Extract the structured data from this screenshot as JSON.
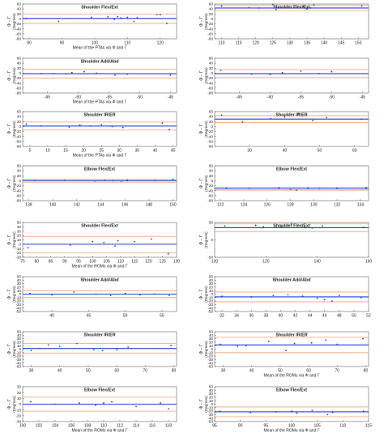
{
  "figure": {
    "axis_symbols": {
      "upper": "Φ − Γ",
      "lower": "(Degrees)"
    }
  },
  "chart_data": [
    {
      "type": "scatter",
      "title": "Shoulder Flex/Ext",
      "xlabel": "Mean of the PTAs via  Φ  and  Γ",
      "ylabel": "Φ − Γ (Degrees)",
      "xlim": [
        78,
        125
      ],
      "ylim": [
        -80,
        60
      ],
      "xticks": [
        80,
        90,
        100,
        110,
        120
      ],
      "yticks": [
        -80,
        -60,
        -40,
        -20,
        0,
        20,
        40,
        60
      ],
      "bias": 2,
      "upper_loa": 20,
      "lower_loa": -18,
      "series": [
        {
          "x": [
            79,
            89,
            99,
            104,
            106,
            107,
            108,
            110,
            112,
            113,
            119,
            120,
            122
          ],
          "y": [
            2,
            -10,
            6,
            8,
            -2,
            9,
            4,
            6,
            -10,
            5,
            18,
            17,
            -18
          ]
        }
      ]
    },
    {
      "type": "scatter",
      "title": "Shoulder Flex/Ext",
      "xlabel": "",
      "ylabel": "Φ − Γ (Degrees)",
      "xlim": [
        108,
        153
      ],
      "ylim": [
        -80,
        60
      ],
      "xticks": [
        110,
        115,
        120,
        125,
        130,
        135,
        140,
        145,
        150
      ],
      "yticks": [
        -80,
        -60,
        -40,
        -20,
        0,
        20,
        40,
        60
      ],
      "bias": 44,
      "upper_loa": 56,
      "lower_loa": 34,
      "series": [
        {
          "x": [
            110,
            118,
            121,
            125,
            126,
            134,
            135,
            136,
            137,
            151
          ],
          "y": [
            52,
            45,
            44,
            58,
            38,
            50,
            40,
            44,
            56,
            52
          ]
        }
      ]
    },
    {
      "type": "scatter",
      "title": "Shoulder Add/Abd",
      "xlabel": "Mean of the PTAs via  Φ  and  Γ",
      "ylabel": "Φ − Γ (Degrees)",
      "xlim": [
        -69,
        -44
      ],
      "ylim": [
        -80,
        60
      ],
      "xticks": [
        -65,
        -60,
        -55,
        -50,
        -45
      ],
      "yticks": [
        -80,
        -60,
        -40,
        -20,
        0,
        20,
        40,
        60
      ],
      "bias": -2,
      "upper_loa": 16,
      "lower_loa": -20,
      "series": [
        {
          "x": [
            -66,
            -64,
            -62,
            -61,
            -59,
            -57,
            -54,
            -52,
            -45
          ],
          "y": [
            -2,
            -2,
            -3,
            2,
            6,
            0,
            -8,
            -4,
            -8
          ]
        }
      ]
    },
    {
      "type": "scatter",
      "title": "",
      "xlabel": "",
      "ylabel": "Φ − Γ (Degrees)",
      "xlim": [
        -69,
        -44
      ],
      "ylim": [
        -80,
        60
      ],
      "xticks": [
        -65,
        -60,
        -55,
        -50,
        -45
      ],
      "yticks": [
        -80,
        -60,
        -40,
        -20,
        0,
        20,
        40,
        60
      ],
      "bias": -2,
      "upper_loa": 14,
      "lower_loa": -18,
      "series": [
        {
          "x": [
            -68,
            -63,
            -60,
            -58,
            -55,
            -52,
            -50
          ],
          "y": [
            12,
            -4,
            -6,
            2,
            8,
            -2,
            6
          ]
        }
      ]
    },
    {
      "type": "scatter",
      "title": "Shoulder IR/ER",
      "xlabel": "Mean of the PTAs via  Φ  and  Γ",
      "ylabel": "Φ − Γ (Degrees)",
      "xlim": [
        3,
        46
      ],
      "ylim": [
        -80,
        60
      ],
      "xticks": [
        5,
        10,
        15,
        20,
        25,
        30,
        35,
        40,
        45
      ],
      "yticks": [
        -80,
        -60,
        -40,
        -20,
        0,
        20,
        40,
        60
      ],
      "bias": 2,
      "upper_loa": 18,
      "lower_loa": -14,
      "series": [
        {
          "x": [
            4,
            8,
            16,
            19,
            22,
            25,
            28,
            31,
            42,
            44
          ],
          "y": [
            10,
            2,
            -2,
            6,
            2,
            8,
            0,
            -4,
            14,
            -12
          ]
        }
      ]
    },
    {
      "type": "scatter",
      "title": "Shoulder IR/ER",
      "xlabel": "",
      "ylabel": "Φ − Γ (Degrees)",
      "xlim": [
        20,
        64
      ],
      "ylim": [
        -80,
        60
      ],
      "xticks": [
        30,
        40,
        50,
        60
      ],
      "yticks": [
        -80,
        -60,
        -40,
        -20,
        0,
        20,
        40,
        60
      ],
      "bias": 30,
      "upper_loa": 44,
      "lower_loa": 16,
      "series": [
        {
          "x": [
            22,
            28,
            36,
            40,
            44,
            48,
            52,
            62
          ],
          "y": [
            46,
            18,
            32,
            38,
            52,
            24,
            36,
            30
          ]
        }
      ]
    },
    {
      "type": "scatter",
      "title": "Elbow Flex/Ext",
      "xlabel": "",
      "ylabel": "Φ − Γ (Degrees)",
      "xlim": [
        137.5,
        150.3
      ],
      "ylim": [
        -80,
        60
      ],
      "xticks": [
        138,
        140,
        142,
        144,
        146,
        148,
        150
      ],
      "yticks": [
        -80,
        -60,
        -40,
        -20,
        0,
        20,
        40,
        60
      ],
      "bias": 0,
      "upper_loa": 6,
      "lower_loa": -6,
      "series": [
        {
          "x": [
            138.5,
            141,
            143.5,
            144.3,
            145,
            145.7,
            146.2,
            148.5,
            150
          ],
          "y": [
            0,
            1,
            -1,
            1,
            0,
            -2,
            2,
            0,
            6
          ]
        }
      ]
    },
    {
      "type": "scatter",
      "title": "Elbow Flex/Ext",
      "xlabel": "",
      "ylabel": "Φ − Γ (Degrees)",
      "xlim": [
        121.5,
        134.7
      ],
      "ylim": [
        -80,
        60
      ],
      "xticks": [
        122,
        124,
        126,
        128,
        130,
        132,
        134
      ],
      "yticks": [
        -80,
        -60,
        -40,
        -20,
        0,
        20,
        40,
        60
      ],
      "bias": -32,
      "upper_loa": -26,
      "lower_loa": -38,
      "series": [
        {
          "x": [
            122.5,
            124.5,
            127,
            128,
            128.5,
            129.5,
            130.5,
            132,
            134.5
          ],
          "y": [
            -30,
            -32,
            -28,
            -34,
            -38,
            -30,
            -32,
            -30,
            -28
          ]
        }
      ]
    },
    {
      "type": "scatter",
      "title": "Shoulder Flex/Ext",
      "xlabel": "Mean of the ROMs via  Φ  and  Γ",
      "ylabel": "Φ − Γ (Degrees)",
      "xlim": [
        75,
        130
      ],
      "ylim": [
        -30,
        50
      ],
      "xticks": [
        75,
        80,
        85,
        90,
        95,
        100,
        105,
        110,
        115,
        120,
        125,
        130
      ],
      "yticks": [
        -30,
        -20,
        -10,
        0,
        10,
        20,
        30,
        40,
        50
      ],
      "bias": 0,
      "upper_loa": 18,
      "lower_loa": -20,
      "series": [
        {
          "x": [
            77,
            92,
            100,
            104,
            108,
            109,
            115,
            121,
            127
          ],
          "y": [
            -8,
            -2,
            6,
            4,
            -4,
            8,
            6,
            12,
            -22
          ]
        }
      ]
    },
    {
      "type": "scatter",
      "title": "Shoulder Flex/Ext",
      "xlabel": "",
      "ylabel": "Φ − Γ (Degrees)",
      "xlim": [
        100,
        160
      ],
      "ylim": [
        -50,
        50
      ],
      "xticks": [
        100,
        120,
        140,
        160
      ],
      "yticks": [
        -50,
        0,
        50
      ],
      "bias": 35,
      "upper_loa": 46,
      "lower_loa": 24,
      "series": [
        {
          "x": [
            104,
            116,
            119,
            126,
            130,
            135,
            138,
            142,
            158
          ],
          "y": [
            40,
            42,
            38,
            38,
            46,
            36,
            34,
            40,
            36
          ]
        }
      ]
    },
    {
      "type": "scatter",
      "title": "Shoulder Add/Abd",
      "xlabel": "",
      "ylabel": "Φ − Γ (Degrees)",
      "xlim": [
        36,
        57
      ],
      "ylim": [
        -50,
        50
      ],
      "xticks": [
        40,
        45,
        50,
        55
      ],
      "yticks": [
        -50,
        -40,
        -30,
        -20,
        -10,
        0,
        10,
        20,
        30,
        40,
        50
      ],
      "bias": 0,
      "upper_loa": 10,
      "lower_loa": -10,
      "series": [
        {
          "x": [
            37,
            40,
            43,
            46,
            48,
            50,
            52,
            54,
            56
          ],
          "y": [
            2,
            -2,
            6,
            0,
            -4,
            2,
            -2,
            0,
            -4
          ]
        }
      ]
    },
    {
      "type": "scatter",
      "title": "Shoulder Add/Abd",
      "xlabel": "",
      "ylabel": "Φ − Γ (Degrees)",
      "xlim": [
        31,
        52
      ],
      "ylim": [
        -50,
        50
      ],
      "xticks": [
        32,
        34,
        36,
        38,
        40,
        42,
        44,
        46,
        48,
        50,
        52
      ],
      "yticks": [
        -50,
        -40,
        -30,
        -20,
        -10,
        0,
        10,
        20,
        30,
        40,
        50
      ],
      "bias": -8,
      "upper_loa": 6,
      "lower_loa": -22,
      "series": [
        {
          "x": [
            32,
            36,
            39,
            41,
            43,
            45,
            46,
            47,
            48,
            51
          ],
          "y": [
            -6,
            -8,
            -4,
            -2,
            -6,
            -12,
            -16,
            -20,
            -4,
            -10
          ]
        }
      ]
    },
    {
      "type": "scatter",
      "title": "Shoulder IR/ER",
      "xlabel": "",
      "ylabel": "Φ − Γ (Degrees)",
      "xlim": [
        27,
        81
      ],
      "ylim": [
        -50,
        50
      ],
      "xticks": [
        30,
        40,
        50,
        60,
        70,
        80
      ],
      "yticks": [
        -50,
        -40,
        -30,
        -20,
        -10,
        0,
        10,
        20,
        30,
        40,
        50
      ],
      "bias": 2,
      "upper_loa": 16,
      "lower_loa": -12,
      "series": [
        {
          "x": [
            30,
            33,
            36,
            40,
            46,
            52,
            55,
            60,
            64,
            79
          ],
          "y": [
            -4,
            2,
            12,
            8,
            16,
            -2,
            -4,
            -2,
            6,
            10
          ]
        }
      ]
    },
    {
      "type": "scatter",
      "title": "Shoulder IR/ER",
      "xlabel": "Mean of the ROMs via  Φ  and  Γ",
      "ylabel": "Φ − Γ (Degrees)",
      "xlim": [
        27,
        81
      ],
      "ylim": [
        -50,
        50
      ],
      "xticks": [
        30,
        40,
        50,
        60,
        70,
        80
      ],
      "yticks": [
        -50,
        -40,
        -30,
        -20,
        -10,
        0,
        10,
        20,
        30,
        40,
        50
      ],
      "bias": 12,
      "upper_loa": 34,
      "lower_loa": -10,
      "series": [
        {
          "x": [
            29,
            35,
            38,
            46,
            52,
            55,
            61,
            66,
            70,
            79
          ],
          "y": [
            14,
            8,
            10,
            22,
            -4,
            16,
            18,
            26,
            14,
            30
          ]
        }
      ]
    },
    {
      "type": "scatter",
      "title": "Elbow Flex/Ext",
      "xlabel": "Mean of the ROMs via  Φ  and  Γ",
      "ylabel": "Φ − Γ (Degrees)",
      "xlim": [
        100,
        119
      ],
      "ylim": [
        -30,
        30
      ],
      "xticks": [
        100,
        102,
        104,
        106,
        108,
        110,
        112,
        114,
        116,
        118
      ],
      "yticks": [
        -30,
        -20,
        -10,
        0,
        10,
        20,
        30
      ],
      "bias": 0,
      "upper_loa": 12,
      "lower_loa": -12,
      "series": [
        {
          "x": [
            101,
            104,
            107,
            109,
            110,
            111,
            114,
            117,
            118
          ],
          "y": [
            4,
            0,
            2,
            -2,
            2,
            4,
            -4,
            2,
            -8
          ]
        }
      ]
    },
    {
      "type": "scatter",
      "title": "Elbow Flex/Ext",
      "xlabel": "Mean of the ROMs via  Φ  and  Γ",
      "ylabel": "Φ − Γ (Degrees)",
      "xlim": [
        85,
        115
      ],
      "ylim": [
        -50,
        50
      ],
      "xticks": [
        85,
        90,
        95,
        100,
        105,
        110,
        115
      ],
      "yticks": [
        -50,
        -40,
        -30,
        -20,
        -10,
        0,
        10,
        20,
        30,
        40,
        50
      ],
      "bias": -22,
      "upper_loa": -8,
      "lower_loa": -36,
      "series": [
        {
          "x": [
            86,
            92,
            97,
            100,
            101,
            104,
            107,
            108,
            114
          ],
          "y": [
            -20,
            -24,
            -22,
            -20,
            -26,
            -18,
            -30,
            -24,
            -20
          ]
        }
      ]
    }
  ]
}
